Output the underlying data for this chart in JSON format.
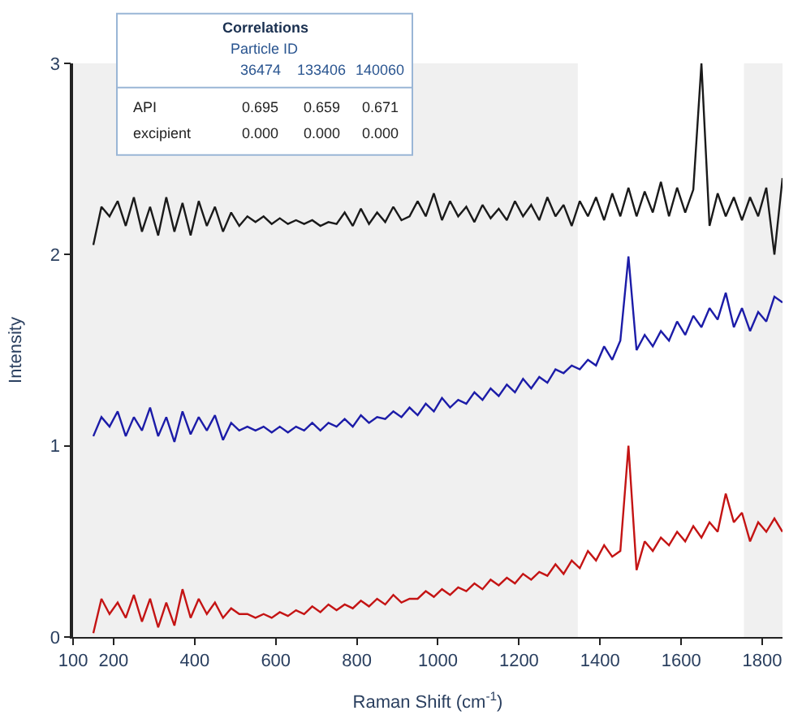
{
  "chart_data": {
    "type": "line",
    "xlabel": "Raman Shift (cm$^{-1}$)",
    "ylabel": "Intensity",
    "x": [
      150,
      170,
      190,
      210,
      230,
      250,
      270,
      290,
      310,
      330,
      350,
      370,
      390,
      410,
      430,
      450,
      470,
      490,
      510,
      530,
      550,
      570,
      590,
      610,
      630,
      650,
      670,
      690,
      710,
      730,
      750,
      770,
      790,
      810,
      830,
      850,
      870,
      890,
      910,
      930,
      950,
      970,
      990,
      1010,
      1030,
      1050,
      1070,
      1090,
      1110,
      1130,
      1150,
      1170,
      1190,
      1210,
      1230,
      1250,
      1270,
      1290,
      1310,
      1330,
      1350,
      1370,
      1390,
      1410,
      1430,
      1450,
      1470,
      1490,
      1510,
      1530,
      1550,
      1570,
      1590,
      1610,
      1630,
      1650,
      1670,
      1690,
      1710,
      1730,
      1750,
      1770,
      1790,
      1810,
      1830,
      1850
    ],
    "series": [
      {
        "color": "#1a1a1a",
        "values": [
          2.05,
          2.25,
          2.2,
          2.28,
          2.15,
          2.3,
          2.12,
          2.25,
          2.1,
          2.3,
          2.12,
          2.27,
          2.1,
          2.28,
          2.15,
          2.25,
          2.12,
          2.22,
          2.15,
          2.2,
          2.17,
          2.2,
          2.16,
          2.19,
          2.16,
          2.18,
          2.16,
          2.18,
          2.15,
          2.17,
          2.16,
          2.22,
          2.15,
          2.24,
          2.16,
          2.22,
          2.17,
          2.25,
          2.18,
          2.2,
          2.28,
          2.2,
          2.32,
          2.18,
          2.28,
          2.2,
          2.25,
          2.17,
          2.26,
          2.19,
          2.24,
          2.18,
          2.28,
          2.2,
          2.26,
          2.18,
          2.3,
          2.2,
          2.26,
          2.15,
          2.28,
          2.2,
          2.3,
          2.18,
          2.32,
          2.2,
          2.35,
          2.2,
          2.33,
          2.22,
          2.38,
          2.2,
          2.35,
          2.22,
          2.34,
          3.0,
          2.15,
          2.32,
          2.2,
          2.3,
          2.18,
          2.3,
          2.2,
          2.35,
          2.0,
          2.4
        ]
      },
      {
        "color": "#1c1ca8",
        "values": [
          1.05,
          1.15,
          1.1,
          1.18,
          1.05,
          1.15,
          1.08,
          1.2,
          1.05,
          1.15,
          1.02,
          1.18,
          1.06,
          1.15,
          1.08,
          1.16,
          1.03,
          1.12,
          1.08,
          1.1,
          1.08,
          1.1,
          1.07,
          1.1,
          1.07,
          1.1,
          1.08,
          1.12,
          1.08,
          1.12,
          1.1,
          1.14,
          1.1,
          1.16,
          1.12,
          1.15,
          1.14,
          1.18,
          1.15,
          1.2,
          1.16,
          1.22,
          1.18,
          1.25,
          1.2,
          1.24,
          1.22,
          1.28,
          1.24,
          1.3,
          1.26,
          1.32,
          1.28,
          1.35,
          1.3,
          1.36,
          1.33,
          1.4,
          1.38,
          1.42,
          1.4,
          1.45,
          1.42,
          1.52,
          1.45,
          1.55,
          1.99,
          1.5,
          1.58,
          1.52,
          1.6,
          1.55,
          1.65,
          1.58,
          1.68,
          1.62,
          1.72,
          1.66,
          1.8,
          1.62,
          1.72,
          1.6,
          1.7,
          1.65,
          1.78,
          1.75
        ]
      },
      {
        "color": "#c41414",
        "values": [
          0.02,
          0.2,
          0.12,
          0.18,
          0.1,
          0.22,
          0.08,
          0.2,
          0.05,
          0.18,
          0.06,
          0.25,
          0.1,
          0.2,
          0.12,
          0.18,
          0.1,
          0.15,
          0.12,
          0.12,
          0.1,
          0.12,
          0.1,
          0.13,
          0.11,
          0.14,
          0.12,
          0.16,
          0.13,
          0.17,
          0.14,
          0.17,
          0.15,
          0.19,
          0.16,
          0.2,
          0.17,
          0.22,
          0.18,
          0.2,
          0.2,
          0.24,
          0.21,
          0.25,
          0.22,
          0.26,
          0.24,
          0.28,
          0.25,
          0.3,
          0.27,
          0.31,
          0.28,
          0.33,
          0.3,
          0.34,
          0.32,
          0.38,
          0.33,
          0.4,
          0.36,
          0.45,
          0.4,
          0.48,
          0.42,
          0.45,
          1.0,
          0.35,
          0.5,
          0.45,
          0.52,
          0.48,
          0.55,
          0.5,
          0.58,
          0.52,
          0.6,
          0.55,
          0.75,
          0.6,
          0.65,
          0.5,
          0.6,
          0.55,
          0.62,
          0.55
        ]
      }
    ],
    "xlim": [
      100,
      1850
    ],
    "xticks": [
      100,
      200,
      400,
      600,
      800,
      1000,
      1200,
      1400,
      1600,
      1800
    ],
    "ylim": [
      0,
      3
    ],
    "yticks": [
      0,
      1,
      2,
      3
    ],
    "bands": [
      {
        "axis": "x",
        "from": 100,
        "to": 1345,
        "color": "#f0f0f0"
      },
      {
        "axis": "x",
        "from": 1755,
        "to": 1850,
        "color": "#f0f0f0"
      }
    ],
    "annotations": [
      "Correlations",
      "Particle ID",
      "36474",
      "133406",
      "140060",
      "API",
      "0.695",
      "0.659",
      "0.671",
      "excipient",
      "0.000",
      "0.000",
      "0.000"
    ],
    "grid": false,
    "marker": "none",
    "line_style": "solid"
  }
}
